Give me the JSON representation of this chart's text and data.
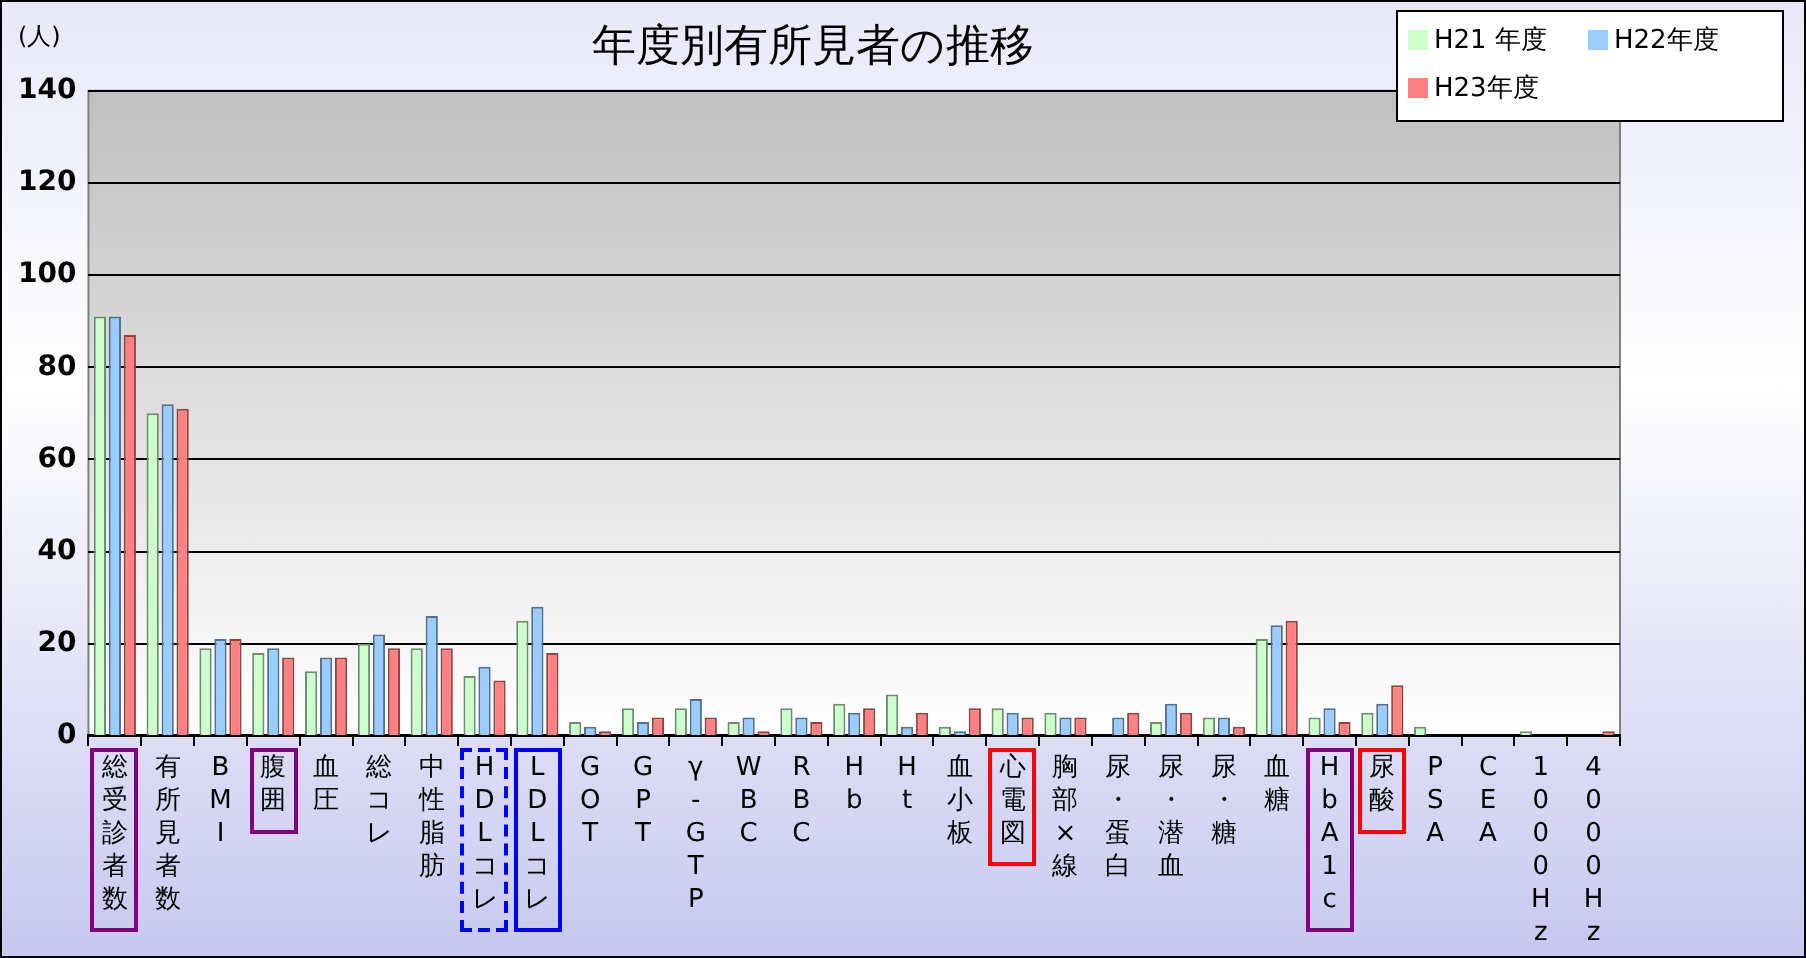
{
  "chart_data": {
    "type": "bar",
    "title": "年度別有所見者の推移",
    "ylabel": "(人)",
    "categories": [
      "総受診者数",
      "有所見者数",
      "BMI",
      "腹囲",
      "血圧",
      "総コレ",
      "中性脂肪",
      "HDLコレ",
      "LDLコレ",
      "GOT",
      "GPT",
      "γ-GTP",
      "WBC",
      "RBC",
      "Hb",
      "Ht",
      "血小板",
      "心電図",
      "胸部×線",
      "尿・蛋白",
      "尿・潜血",
      "尿・糖",
      "血糖",
      "HbA1c",
      "尿酸",
      "PSA",
      "CEA",
      "1000Hz",
      "4000Hz"
    ],
    "series": [
      {
        "name": "H21 年度",
        "color": "#ccffcc",
        "values": [
          91,
          70,
          19,
          18,
          14,
          20,
          19,
          13,
          25,
          3,
          6,
          6,
          3,
          6,
          7,
          9,
          2,
          6,
          5,
          0,
          3,
          4,
          21,
          4,
          5,
          2,
          0,
          1,
          0
        ]
      },
      {
        "name": "H22年度",
        "color": "#99ccff",
        "values": [
          91,
          72,
          21,
          19,
          17,
          22,
          26,
          15,
          28,
          2,
          3,
          8,
          4,
          4,
          5,
          2,
          1,
          5,
          4,
          4,
          7,
          4,
          24,
          6,
          7,
          0,
          0,
          0,
          0
        ]
      },
      {
        "name": "H23年度",
        "color": "#ff8080",
        "values": [
          87,
          71,
          21,
          17,
          17,
          19,
          19,
          12,
          18,
          1,
          4,
          4,
          1,
          3,
          6,
          5,
          6,
          4,
          4,
          5,
          5,
          2,
          25,
          3,
          11,
          0,
          0,
          0,
          1
        ]
      }
    ],
    "ylim": [
      0,
      140
    ],
    "yticks": [
      0,
      20,
      40,
      60,
      80,
      100,
      120,
      140
    ],
    "grid": "y",
    "legend": "top right"
  }
}
